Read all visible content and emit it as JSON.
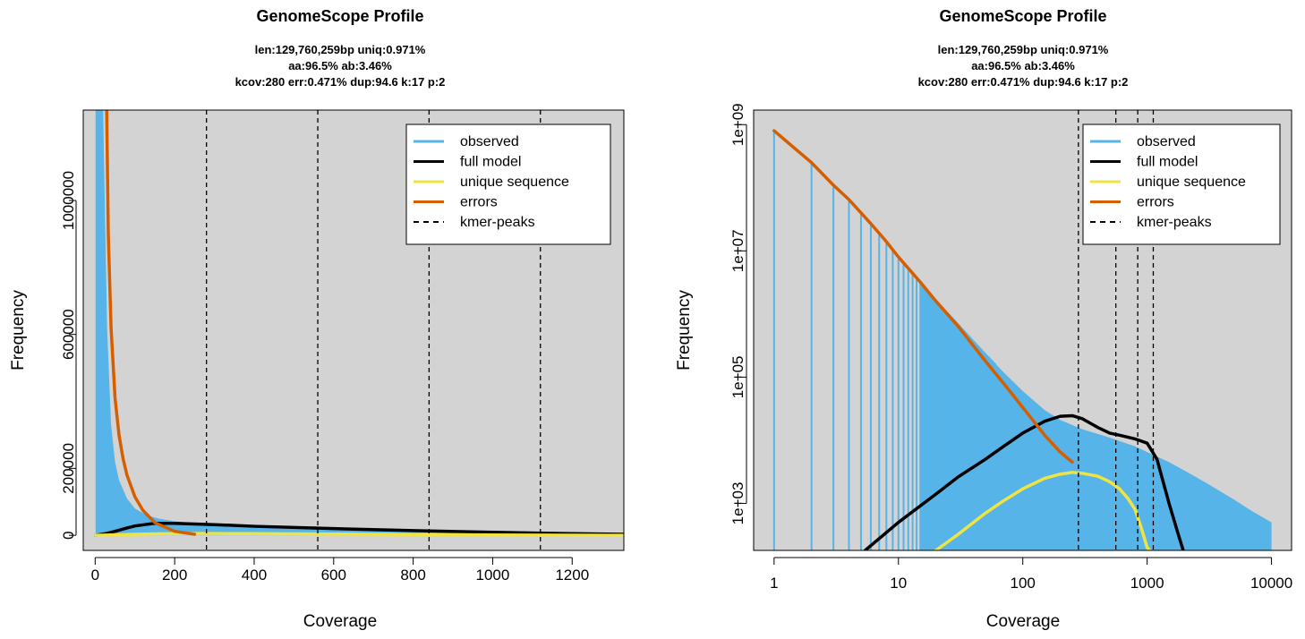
{
  "colors": {
    "observed": "#56b4e9",
    "full_model": "#000000",
    "unique": "#f0e442",
    "errors": "#d55e00",
    "peaks": "#000000",
    "panel_bg": "#d3d3d3"
  },
  "chart_data": [
    {
      "type": "line",
      "title": "GenomeScope Profile",
      "subtitle": [
        "len:129,760,259bp uniq:0.971%",
        "aa:96.5% ab:3.46%",
        "kcov:280 err:0.471%  dup:94.6  k:17 p:2"
      ],
      "xlabel": "Coverage",
      "ylabel": "Frequency",
      "xscale": "linear",
      "yscale": "linear",
      "xlim": [
        -30,
        1330
      ],
      "ylim": [
        -45000,
        1270000
      ],
      "xticks": [
        0,
        200,
        400,
        600,
        800,
        1000,
        1200
      ],
      "xtick_labels": [
        "0",
        "200",
        "400",
        "600",
        "800",
        "1000",
        "1200"
      ],
      "yticks": [
        0,
        200000,
        600000,
        1000000
      ],
      "ytick_labels": [
        "0",
        "200000",
        "600000",
        "1000000"
      ],
      "kmer_peaks": [
        280,
        560,
        840,
        1120
      ],
      "legend_position": "top-right",
      "legend": [
        "observed",
        "full model",
        "unique sequence",
        "errors",
        "kmer-peaks"
      ],
      "series": [
        {
          "name": "observed",
          "kind": "area",
          "x": [
            1,
            20,
            30,
            40,
            50,
            60,
            80,
            100,
            130,
            160,
            200,
            250,
            300,
            400,
            600,
            800,
            1000,
            1200,
            1330
          ],
          "y": [
            1270000,
            1270000,
            620000,
            330000,
            220000,
            165000,
            110000,
            80000,
            60000,
            50000,
            42000,
            36000,
            31000,
            24000,
            16000,
            11000,
            7000,
            4000,
            2500
          ]
        },
        {
          "name": "full model",
          "kind": "line",
          "x": [
            1,
            30,
            50,
            80,
            100,
            150,
            200,
            300,
            400,
            600,
            800,
            1000,
            1200,
            1330
          ],
          "y": [
            0,
            6000,
            12000,
            22000,
            28000,
            36000,
            36000,
            32000,
            27000,
            20000,
            14000,
            9000,
            5000,
            3000
          ]
        },
        {
          "name": "unique sequence",
          "kind": "line",
          "x": [
            1,
            50,
            100,
            150,
            200,
            250,
            300,
            400,
            600,
            800,
            1000,
            1200,
            1330
          ],
          "y": [
            0,
            1500,
            3000,
            4500,
            5200,
            5500,
            5400,
            5000,
            3800,
            2500,
            1200,
            300,
            0
          ]
        },
        {
          "name": "errors",
          "kind": "line",
          "x": [
            29,
            33,
            40,
            50,
            60,
            70,
            80,
            100,
            120,
            150,
            200,
            250
          ],
          "y": [
            1270000,
            900000,
            620000,
            410000,
            300000,
            230000,
            180000,
            115000,
            75000,
            38000,
            12000,
            3000
          ]
        }
      ]
    },
    {
      "type": "line",
      "title": "GenomeScope Profile",
      "subtitle": [
        "len:129,760,259bp uniq:0.971%",
        "aa:96.5% ab:3.46%",
        "kcov:280 err:0.471%  dup:94.6  k:17 p:2"
      ],
      "xlabel": "Coverage",
      "ylabel": "Frequency",
      "xscale": "log",
      "yscale": "log",
      "xlim": [
        0.685,
        14500
      ],
      "ylim": [
        180,
        1700000000
      ],
      "xticks": [
        1,
        10,
        100,
        1000,
        10000
      ],
      "xtick_labels": [
        "1",
        "10",
        "100",
        "1000",
        "10000"
      ],
      "yticks": [
        1000,
        100000,
        10000000,
        1000000000
      ],
      "ytick_labels": [
        "1e+03",
        "1e+05",
        "1e+07",
        "1e+09"
      ],
      "kmer_peaks": [
        280,
        560,
        840,
        1120
      ],
      "legend_position": "top-right",
      "legend": [
        "observed",
        "full model",
        "unique sequence",
        "errors",
        "kmer-peaks"
      ],
      "series": [
        {
          "name": "observed",
          "kind": "stems",
          "x": [
            1,
            2,
            3,
            4,
            5,
            6,
            7,
            8,
            9,
            10,
            15,
            20,
            30,
            50,
            70,
            100,
            150,
            200,
            300,
            500,
            800,
            1000,
            1500,
            2000,
            3000,
            5000,
            7000,
            10000
          ],
          "y": [
            800000000,
            250000000,
            110000000,
            65000000,
            40000000,
            27000000,
            19000000,
            14000000,
            10500000,
            8000000,
            3200000,
            1700000,
            720000,
            240000,
            120000,
            60000,
            30000,
            21000,
            15000,
            11000,
            8000,
            6500,
            4500,
            3300,
            2100,
            1150,
            750,
            500
          ]
        },
        {
          "name": "full model",
          "kind": "line",
          "x": [
            5.4,
            10,
            20,
            30,
            50,
            70,
            100,
            150,
            200,
            250,
            300,
            400,
            500,
            600,
            800,
            1000,
            1200,
            1500,
            1800,
            1950
          ],
          "y": [
            180,
            500,
            1400,
            2600,
            5000,
            8000,
            13000,
            20000,
            24000,
            24500,
            22000,
            16000,
            13000,
            12000,
            10500,
            9000,
            5000,
            1000,
            300,
            180
          ]
        },
        {
          "name": "unique sequence",
          "kind": "line",
          "x": [
            20,
            30,
            50,
            70,
            100,
            150,
            200,
            250,
            300,
            400,
            500,
            600,
            700,
            800,
            900,
            1000,
            1050
          ],
          "y": [
            180,
            320,
            700,
            1100,
            1700,
            2500,
            2900,
            3100,
            3000,
            2700,
            2200,
            1700,
            1200,
            800,
            400,
            200,
            180
          ]
        },
        {
          "name": "errors",
          "kind": "line",
          "x": [
            1,
            2,
            3,
            4,
            5,
            6,
            7,
            8,
            10,
            15,
            20,
            30,
            50,
            70,
            100,
            150,
            200,
            250
          ],
          "y": [
            800000000,
            250000000,
            110000000,
            65000000,
            40000000,
            27000000,
            19000000,
            14000000,
            8000000,
            3200000,
            1600000,
            650000,
            180000,
            80000,
            33000,
            12000,
            6500,
            4500
          ]
        }
      ]
    }
  ]
}
